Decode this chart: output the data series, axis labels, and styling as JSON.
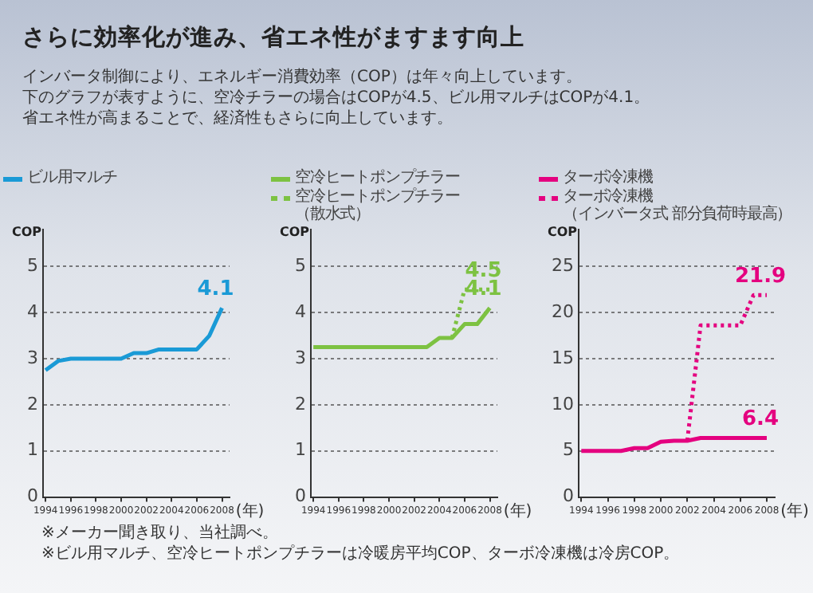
{
  "chart_data": [
    {
      "type": "line",
      "title": "さらに効率化が進み、省エネ性がますます向上",
      "subtitle": "インバータ制御により、エネルギー消費効率（COP）は年々向上しています。下のグラフが表すように、空冷チラーの場合はCOPが4.5、ビル用マルチはCOPが4.1。省エネ性が高まることで、経済性もさらに向上しています。",
      "annotations": [
        "※メーカー聞き取り、当社調べ。",
        "※ビル用マルチ、空冷ヒートポンプチラーは冷暖房平均COP、ターボ冷凍機は冷房COP。"
      ],
      "ylabel": "COP",
      "xlabel": "(年)",
      "x": [
        1994,
        1995,
        1996,
        1997,
        1998,
        1999,
        2000,
        2001,
        2002,
        2003,
        2004,
        2005,
        2006,
        2007,
        2008
      ],
      "xlim": [
        1993.8,
        2008.6
      ],
      "xticks": [
        1994,
        1996,
        1998,
        2000,
        2002,
        2004,
        2006,
        2008
      ],
      "ylim": [
        0,
        5.8
      ],
      "yticks": [
        0,
        1,
        2,
        3,
        4,
        5
      ],
      "grid": "y",
      "legend": "top left",
      "marker": "none",
      "series": [
        {
          "name": "ビル用マルチ",
          "color": "#1a9ad6",
          "line_style": "solid",
          "values": [
            2.75,
            2.95,
            3.0,
            3.0,
            3.0,
            3.0,
            3.0,
            3.12,
            3.12,
            3.2,
            3.2,
            3.2,
            3.2,
            3.5,
            4.1
          ],
          "value_labels": [
            null,
            null,
            null,
            null,
            null,
            null,
            null,
            null,
            null,
            null,
            null,
            null,
            null,
            null,
            "4.1"
          ]
        }
      ]
    },
    {
      "type": "line",
      "ylabel": "COP",
      "xlabel": "(年)",
      "x": [
        1994,
        1995,
        1996,
        1997,
        1998,
        1999,
        2000,
        2001,
        2002,
        2003,
        2004,
        2005,
        2006,
        2007,
        2008
      ],
      "xlim": [
        1993.8,
        2008.6
      ],
      "xticks": [
        1994,
        1996,
        1998,
        2000,
        2002,
        2004,
        2006,
        2008
      ],
      "ylim": [
        0,
        5.8
      ],
      "yticks": [
        0,
        1,
        2,
        3,
        4,
        5
      ],
      "grid": "y",
      "legend": "top left",
      "marker": "none",
      "series": [
        {
          "name": "空冷ヒートポンプチラー",
          "color": "#7dc242",
          "line_style": "solid",
          "values": [
            3.25,
            3.25,
            3.25,
            3.25,
            3.25,
            3.25,
            3.25,
            3.25,
            3.25,
            3.25,
            3.45,
            3.45,
            3.75,
            3.75,
            4.1
          ],
          "value_labels": [
            null,
            null,
            null,
            null,
            null,
            null,
            null,
            null,
            null,
            null,
            null,
            null,
            null,
            null,
            "4.1"
          ]
        },
        {
          "name": "空冷ヒートポンプチラー（散水式）",
          "color": "#7dc242",
          "line_style": "dotted",
          "values": [
            null,
            null,
            null,
            null,
            null,
            null,
            null,
            null,
            null,
            null,
            null,
            3.45,
            4.5,
            4.5,
            4.5
          ],
          "value_labels": [
            null,
            null,
            null,
            null,
            null,
            null,
            null,
            null,
            null,
            null,
            null,
            null,
            null,
            null,
            "4.5"
          ]
        }
      ]
    },
    {
      "type": "line",
      "ylabel": "COP",
      "xlabel": "(年)",
      "x": [
        1994,
        1995,
        1996,
        1997,
        1998,
        1999,
        2000,
        2001,
        2002,
        2003,
        2004,
        2005,
        2006,
        2007,
        2008
      ],
      "xlim": [
        1993.8,
        2008.6
      ],
      "xticks": [
        1994,
        1996,
        1998,
        2000,
        2002,
        2004,
        2006,
        2008
      ],
      "ylim": [
        0,
        29
      ],
      "yticks": [
        0,
        5,
        10,
        15,
        20,
        25
      ],
      "grid": "y",
      "legend": "top left",
      "marker": "none",
      "series": [
        {
          "name": "ターボ冷凍機",
          "color": "#e4007f",
          "line_style": "solid",
          "values": [
            5.0,
            5.0,
            5.0,
            5.0,
            5.3,
            5.3,
            6.0,
            6.1,
            6.1,
            6.4,
            6.4,
            6.4,
            6.4,
            6.4,
            6.4
          ],
          "value_labels": [
            null,
            null,
            null,
            null,
            null,
            null,
            null,
            null,
            null,
            null,
            null,
            null,
            null,
            null,
            "6.4"
          ]
        },
        {
          "name": "ターボ冷凍機（インバータ式 部分負荷時最高）",
          "color": "#e4007f",
          "line_style": "dotted",
          "values": [
            null,
            null,
            null,
            null,
            null,
            null,
            null,
            null,
            6.1,
            18.6,
            18.6,
            18.6,
            18.6,
            21.9,
            21.9
          ],
          "value_labels": [
            null,
            null,
            null,
            null,
            null,
            null,
            null,
            null,
            null,
            null,
            null,
            null,
            null,
            null,
            "21.9"
          ]
        }
      ]
    }
  ]
}
